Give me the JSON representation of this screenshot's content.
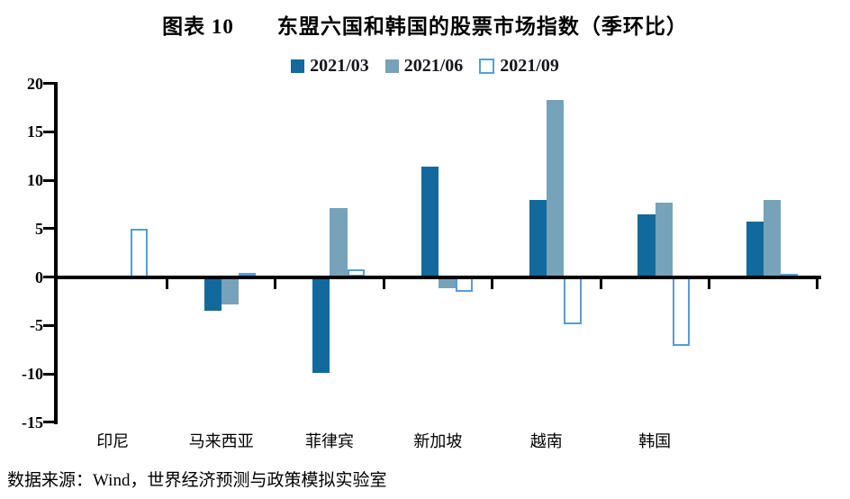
{
  "title": "图表 10　　东盟六国和韩国的股票市场指数（季环比）",
  "source": "数据来源：Wind，世界经济预测与政策模拟实验室",
  "colors": {
    "series_fill": [
      "#126A9C",
      "#76A3B9",
      "#ffffff"
    ],
    "series_outline": "#5B9BD5",
    "axis": "#000000",
    "text": "#000000"
  },
  "chart_data": {
    "type": "bar",
    "title": "图表 10 东盟六国和韩国的股票市场指数（季环比）",
    "categories": [
      "印尼",
      "马来西亚",
      "菲律宾",
      "新加坡",
      "越南",
      "韩国",
      ""
    ],
    "series": [
      {
        "name": "2021/03",
        "style": "fill-dark-blue",
        "values": [
          0,
          -3.5,
          -9.9,
          11.4,
          8.0,
          6.5,
          5.7
        ]
      },
      {
        "name": "2021/06",
        "style": "fill-gray-blue",
        "values": [
          0,
          -2.8,
          7.1,
          -1.2,
          18.3,
          7.7,
          8.0
        ]
      },
      {
        "name": "2021/09",
        "style": "outline-blue",
        "values": [
          5.0,
          0.4,
          0.8,
          -1.5,
          -4.9,
          -7.1,
          0.3
        ]
      }
    ],
    "xlabel": "",
    "ylabel": "",
    "ylim": [
      -15,
      20
    ],
    "yticks": [
      20,
      15,
      10,
      5,
      0,
      -5,
      -10,
      -15
    ],
    "grid": false,
    "legend_position": "top-center"
  }
}
